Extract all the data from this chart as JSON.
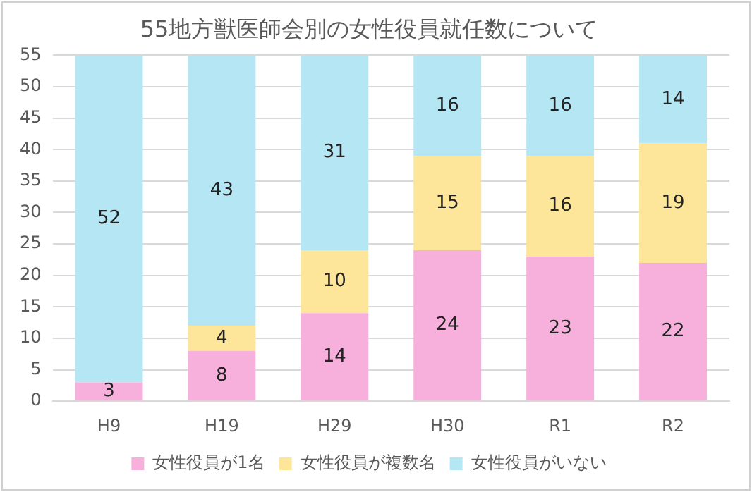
{
  "chart_data": {
    "type": "bar",
    "title": "55地方獣医師会別の女性役員就任数について",
    "categories": [
      "H9",
      "H19",
      "H29",
      "H30",
      "R1",
      "R2"
    ],
    "stacked": true,
    "series": [
      {
        "name": "女性役員が1名",
        "color": "#f7afdc",
        "values": [
          3,
          8,
          14,
          24,
          23,
          22
        ],
        "value_labels": [
          "3",
          "8",
          "14",
          "24",
          "23",
          "22"
        ]
      },
      {
        "name": "女性役員が複数名",
        "color": "#fde69a",
        "values": [
          0,
          4,
          10,
          15,
          16,
          19
        ],
        "value_labels": [
          null,
          "4",
          "10",
          "15",
          "16",
          "19"
        ]
      },
      {
        "name": "女性役員がいない",
        "color": "#b5e6f3",
        "values": [
          52,
          43,
          31,
          16,
          16,
          14
        ],
        "value_labels": [
          "52",
          "43",
          "31",
          "16",
          "16",
          "14"
        ]
      }
    ],
    "ylim": [
      0,
      55
    ],
    "yticks": [
      0,
      5,
      10,
      15,
      20,
      25,
      30,
      35,
      40,
      45,
      50,
      55
    ],
    "grid": "y",
    "legend": "bottom"
  }
}
